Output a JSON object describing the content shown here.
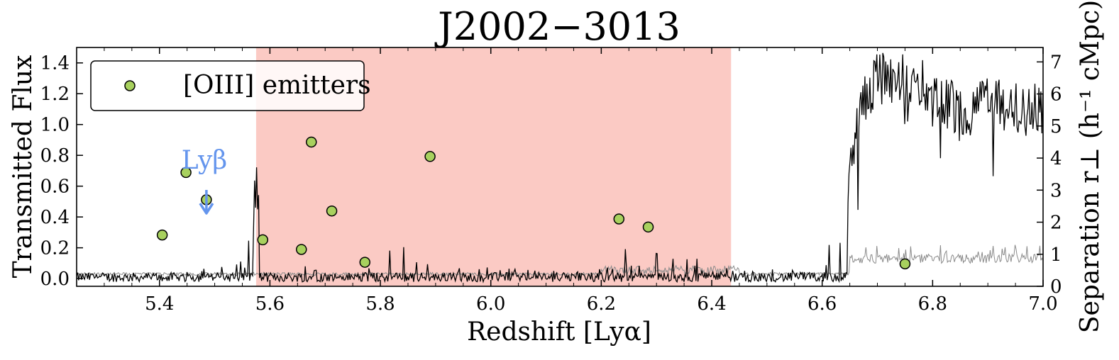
{
  "chart_data": {
    "type": "line",
    "title": "J2002−3013",
    "xlabel": "Redshift [Lyα]",
    "ylabel": "Transmitted Flux",
    "ylabel_right": "Separation r⊥ (h⁻¹ cMpc)",
    "xlim": [
      5.25,
      7.0
    ],
    "ylim": [
      -0.05,
      1.5
    ],
    "ylim_right": [
      0,
      7.45
    ],
    "xticks": [
      5.4,
      5.6,
      5.8,
      6.0,
      6.2,
      6.4,
      6.6,
      6.8,
      7.0
    ],
    "xtick_labels": [
      "5.4",
      "5.6",
      "5.8",
      "6.0",
      "6.2",
      "6.4",
      "6.6",
      "6.8",
      "7.0"
    ],
    "yticks": [
      0.0,
      0.2,
      0.4,
      0.6,
      0.8,
      1.0,
      1.2,
      1.4
    ],
    "ytick_labels": [
      "0.0",
      "0.2",
      "0.4",
      "0.6",
      "0.8",
      "1.0",
      "1.2",
      "1.4"
    ],
    "yticks_right": [
      0,
      1,
      2,
      3,
      4,
      5,
      6,
      7
    ],
    "ytick_labels_right": [
      "0",
      "1",
      "2",
      "3",
      "4",
      "5",
      "6",
      "7"
    ],
    "shaded_region": {
      "x": [
        5.575,
        6.435
      ],
      "color": "#f9b8b0"
    },
    "legend": {
      "position": "top-left",
      "label": "[OIII] emitters"
    },
    "annotation": {
      "text": "Lyβ",
      "x": 5.485,
      "color": "#6495ED"
    },
    "spectrum_profile": [
      [
        5.25,
        0.02
      ],
      [
        5.35,
        0.03
      ],
      [
        5.45,
        0.04
      ],
      [
        5.5,
        0.12
      ],
      [
        5.55,
        0.1
      ],
      [
        5.575,
        0.6
      ],
      [
        5.6,
        0.08
      ],
      [
        5.62,
        0.15
      ],
      [
        5.7,
        0.05
      ],
      [
        5.8,
        0.1
      ],
      [
        5.81,
        0.32
      ],
      [
        5.9,
        0.06
      ],
      [
        6.0,
        0.05
      ],
      [
        6.1,
        0.05
      ],
      [
        6.2,
        0.05
      ],
      [
        6.25,
        0.18
      ],
      [
        6.32,
        0.22
      ],
      [
        6.4,
        0.05
      ],
      [
        6.5,
        0.03
      ],
      [
        6.6,
        0.03
      ],
      [
        6.625,
        0.4
      ],
      [
        6.64,
        0.35
      ],
      [
        6.66,
        0.9
      ],
      [
        6.68,
        1.2
      ],
      [
        6.7,
        1.3
      ],
      [
        6.75,
        1.3
      ],
      [
        6.8,
        1.25
      ],
      [
        6.85,
        1.05
      ],
      [
        6.9,
        1.15
      ],
      [
        6.95,
        1.1
      ],
      [
        7.0,
        1.1
      ]
    ],
    "series": [
      {
        "name": "[OIII] emitters",
        "color": "#a8d15e",
        "axis": "right",
        "points": [
          [
            5.405,
            1.6
          ],
          [
            5.448,
            3.55
          ],
          [
            5.485,
            2.7
          ],
          [
            5.587,
            1.45
          ],
          [
            5.657,
            1.15
          ],
          [
            5.675,
            4.5
          ],
          [
            5.712,
            2.35
          ],
          [
            5.772,
            0.75
          ],
          [
            5.89,
            4.05
          ],
          [
            6.232,
            2.1
          ],
          [
            6.285,
            1.85
          ],
          [
            6.75,
            0.7
          ]
        ]
      }
    ]
  }
}
